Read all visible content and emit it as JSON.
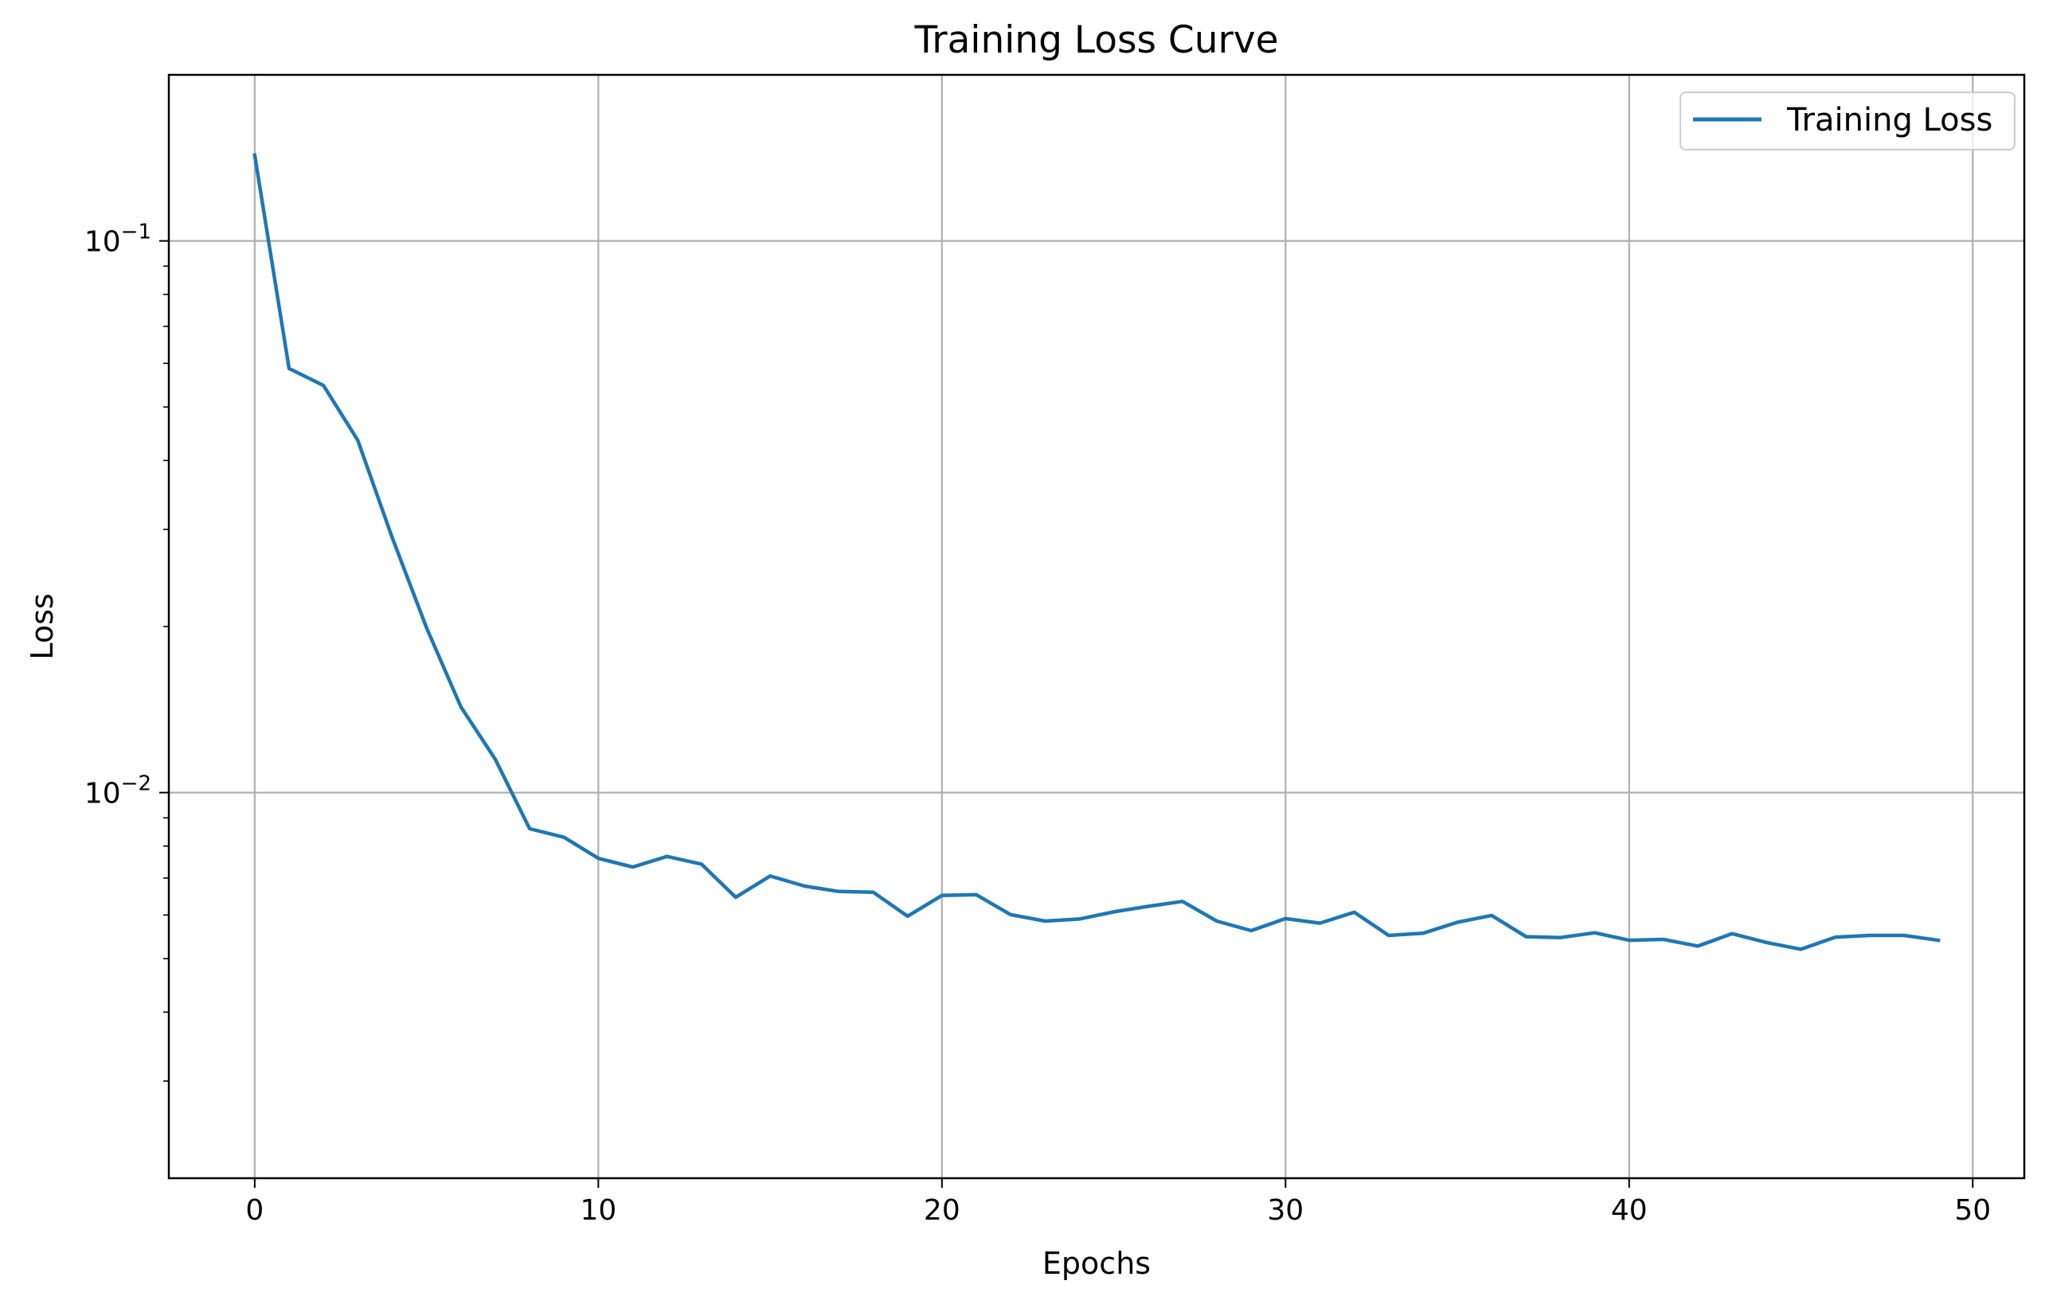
{
  "chart_data": {
    "type": "line",
    "title": "Training Loss Curve",
    "xlabel": "Epochs",
    "ylabel": "Loss",
    "yscale": "log",
    "xlim": [
      -2.5,
      51.5
    ],
    "ylim": [
      0.002,
      0.2
    ],
    "grid": true,
    "legend_position": "top-right",
    "x_ticks": [
      {
        "value": 0,
        "label": "0"
      },
      {
        "value": 10,
        "label": "10"
      },
      {
        "value": 20,
        "label": "20"
      },
      {
        "value": 30,
        "label": "30"
      },
      {
        "value": 40,
        "label": "40"
      },
      {
        "value": 50,
        "label": "50"
      }
    ],
    "y_major_ticks": [
      {
        "value": 0.1,
        "base": "10",
        "exp": "−1"
      },
      {
        "value": 0.01,
        "base": "10",
        "exp": "−2"
      }
    ],
    "y_minor_ticks": [
      0.003,
      0.004,
      0.005,
      0.006,
      0.007,
      0.008,
      0.009,
      0.02,
      0.03,
      0.04,
      0.05,
      0.06,
      0.07,
      0.08,
      0.09
    ],
    "series": [
      {
        "name": "Training Loss",
        "color": "#1f77b4",
        "x": [
          0,
          1,
          2,
          3,
          4,
          5,
          6,
          7,
          8,
          9,
          10,
          11,
          12,
          13,
          14,
          15,
          16,
          17,
          18,
          19,
          20,
          21,
          22,
          23,
          24,
          25,
          26,
          27,
          28,
          29,
          30,
          31,
          32,
          33,
          34,
          35,
          36,
          37,
          38,
          39,
          40,
          41,
          42,
          43,
          44,
          45,
          46,
          47,
          48,
          49
        ],
        "values": [
          0.143,
          0.0587,
          0.0547,
          0.0435,
          0.029,
          0.0199,
          0.0143,
          0.0115,
          0.0086,
          0.0083,
          0.0076,
          0.00733,
          0.00766,
          0.00742,
          0.00646,
          0.00706,
          0.00677,
          0.00662,
          0.0066,
          0.00597,
          0.00651,
          0.00653,
          0.00601,
          0.00585,
          0.0059,
          0.00608,
          0.00622,
          0.00635,
          0.00585,
          0.00562,
          0.00591,
          0.0058,
          0.00607,
          0.00551,
          0.00556,
          0.00582,
          0.00599,
          0.00548,
          0.00546,
          0.00557,
          0.0054,
          0.00542,
          0.00527,
          0.00555,
          0.00535,
          0.0052,
          0.00547,
          0.00551,
          0.00551,
          0.0054
        ]
      }
    ]
  }
}
